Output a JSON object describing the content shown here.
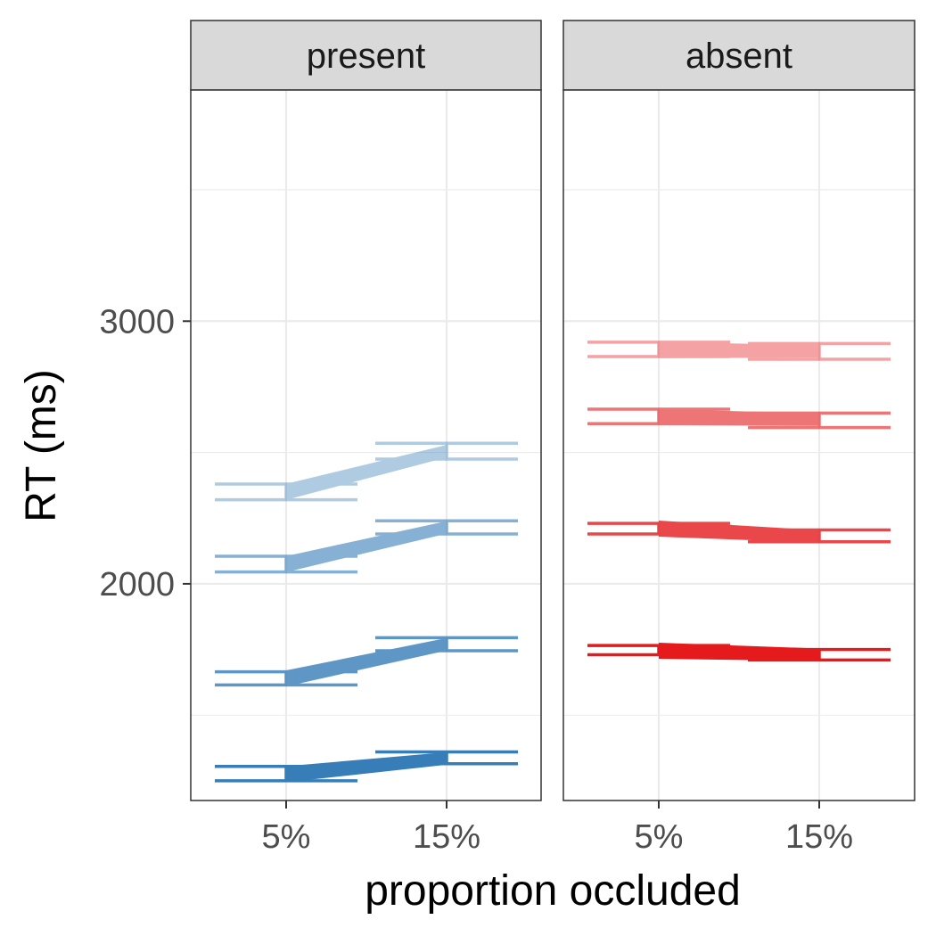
{
  "chart_data": {
    "type": "line",
    "xlabel": "proportion occluded",
    "ylabel": "RT (ms)",
    "categories": [
      "5%",
      "15%"
    ],
    "ylim": [
      1175,
      3880
    ],
    "y_major_ticks": [
      2000,
      3000
    ],
    "y_minor_ticks": [
      1500,
      2500,
      3500
    ],
    "y_tick_labels": [
      "2000",
      "3000"
    ],
    "grid": true,
    "legend": "none",
    "panels": [
      {
        "label": "present",
        "series": [
          {
            "color": "#377EB8",
            "opacity": 0.4,
            "values": [
              2350,
              2505
            ],
            "ci_low": [
              2320,
              2475
            ],
            "ci_high": [
              2380,
              2535
            ]
          },
          {
            "color": "#377EB8",
            "opacity": 0.6,
            "values": [
              2075,
              2215
            ],
            "ci_low": [
              2045,
              2190
            ],
            "ci_high": [
              2105,
              2240
            ]
          },
          {
            "color": "#377EB8",
            "opacity": 0.8,
            "values": [
              1640,
              1770
            ],
            "ci_low": [
              1615,
              1745
            ],
            "ci_high": [
              1665,
              1795
            ]
          },
          {
            "color": "#377EB8",
            "opacity": 1.0,
            "values": [
              1275,
              1335
            ],
            "ci_low": [
              1250,
              1315
            ],
            "ci_high": [
              1305,
              1360
            ]
          }
        ]
      },
      {
        "label": "absent",
        "series": [
          {
            "color": "#E41A1C",
            "opacity": 0.4,
            "values": [
              2890,
              2885
            ],
            "ci_low": [
              2865,
              2855
            ],
            "ci_high": [
              2920,
              2915
            ]
          },
          {
            "color": "#E41A1C",
            "opacity": 0.6,
            "values": [
              2635,
              2625
            ],
            "ci_low": [
              2610,
              2595
            ],
            "ci_high": [
              2665,
              2650
            ]
          },
          {
            "color": "#E41A1C",
            "opacity": 0.8,
            "values": [
              2210,
              2180
            ],
            "ci_low": [
              2190,
              2160
            ],
            "ci_high": [
              2230,
              2205
            ]
          },
          {
            "color": "#E41A1C",
            "opacity": 1.0,
            "values": [
              1745,
              1730
            ],
            "ci_low": [
              1730,
              1710
            ],
            "ci_high": [
              1765,
              1750
            ]
          }
        ]
      }
    ]
  }
}
